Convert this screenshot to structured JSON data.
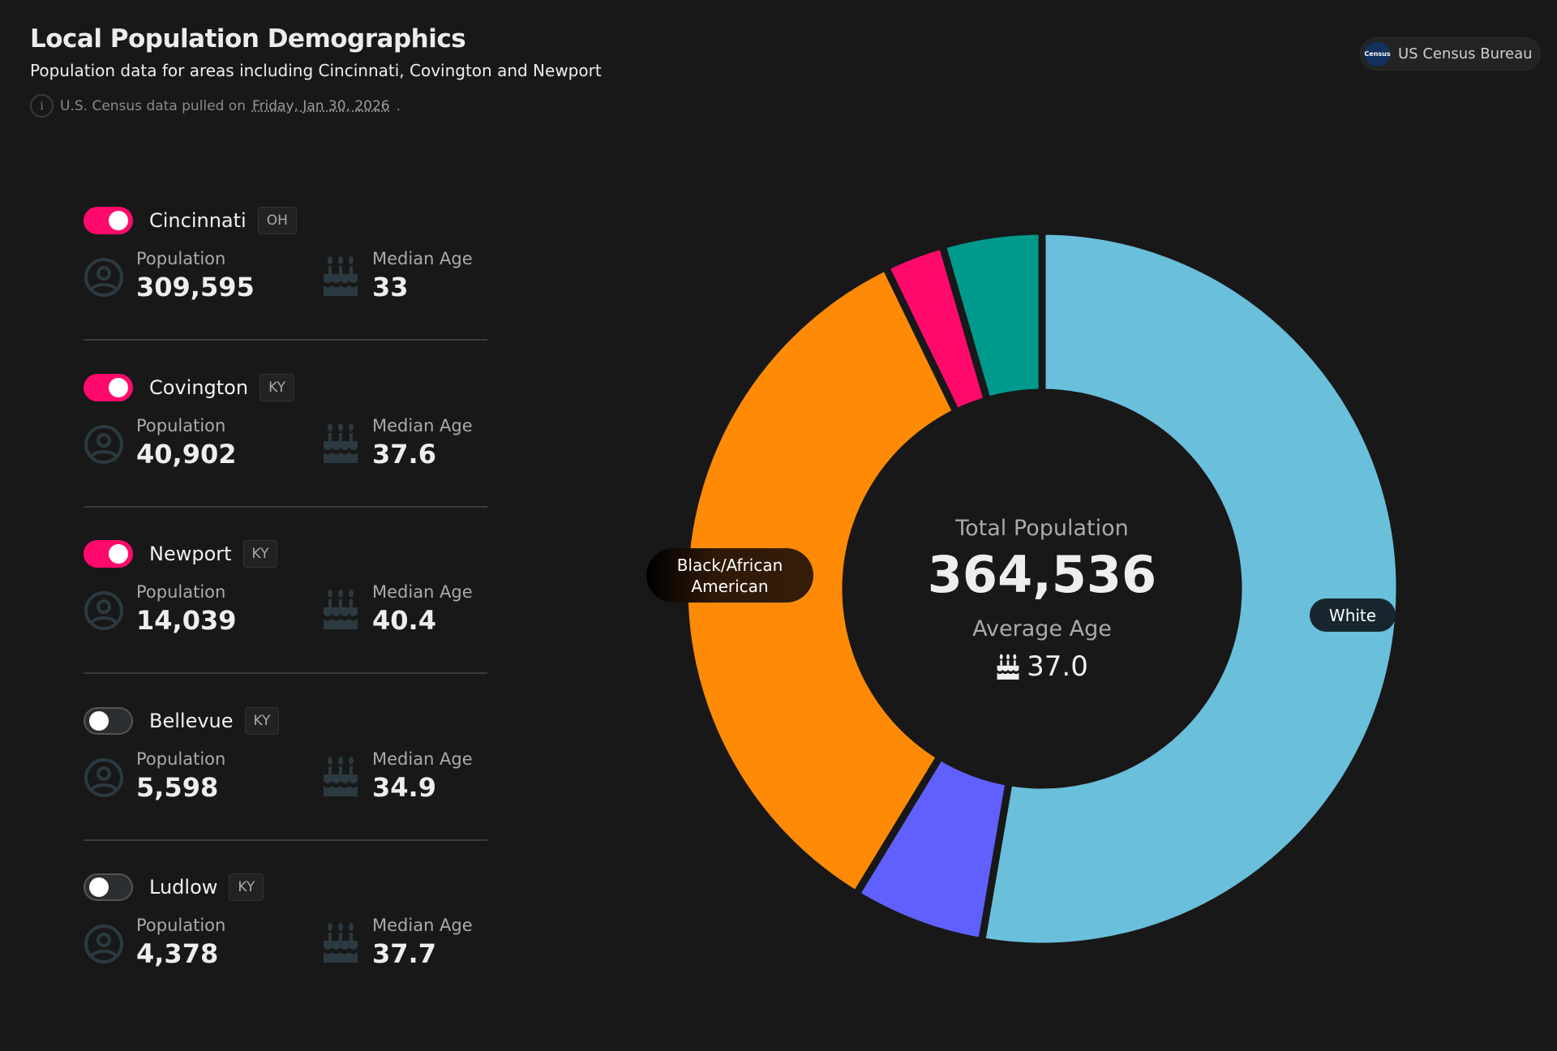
{
  "header": {
    "title": "Local Population Demographics",
    "subtitle": "Population data for areas including Cincinnati, Covington and Newport",
    "info_prefix": "U.S. Census data pulled on",
    "info_date": "Friday, Jan 30, 2026",
    "info_suffix": ".",
    "source_badge": "US Census Bureau",
    "source_logo_text": "Census"
  },
  "labels": {
    "population": "Population",
    "median_age": "Median Age"
  },
  "cities": [
    {
      "name": "Cincinnati",
      "state": "OH",
      "enabled": true,
      "population": "309,595",
      "median_age": "33"
    },
    {
      "name": "Covington",
      "state": "KY",
      "enabled": true,
      "population": "40,902",
      "median_age": "37.6"
    },
    {
      "name": "Newport",
      "state": "KY",
      "enabled": true,
      "population": "14,039",
      "median_age": "40.4"
    },
    {
      "name": "Bellevue",
      "state": "KY",
      "enabled": false,
      "population": "5,598",
      "median_age": "34.9"
    },
    {
      "name": "Ludlow",
      "state": "KY",
      "enabled": false,
      "population": "4,378",
      "median_age": "37.7"
    }
  ],
  "summary": {
    "total_label": "Total Population",
    "total_value": "364,536",
    "avg_age_label": "Average Age",
    "avg_age_value": "37.0"
  },
  "colors": {
    "toggle_on": "#ff0a6c",
    "background": "#181818"
  },
  "chart_data": {
    "type": "pie",
    "donut": true,
    "start": "top",
    "direction": "clockwise",
    "unit": "percent",
    "slices": [
      {
        "name": "White",
        "value": 52.7,
        "color": "#6abfda",
        "labeled": true
      },
      {
        "value": 6.0,
        "color": "#6060ff"
      },
      {
        "name": "Black/African American",
        "value": 34.1,
        "color": "#ff8a05",
        "labeled": true
      },
      {
        "value": 2.7,
        "color": "#ff0a6c"
      },
      {
        "value": 4.5,
        "color": "#009a8c"
      }
    ]
  }
}
